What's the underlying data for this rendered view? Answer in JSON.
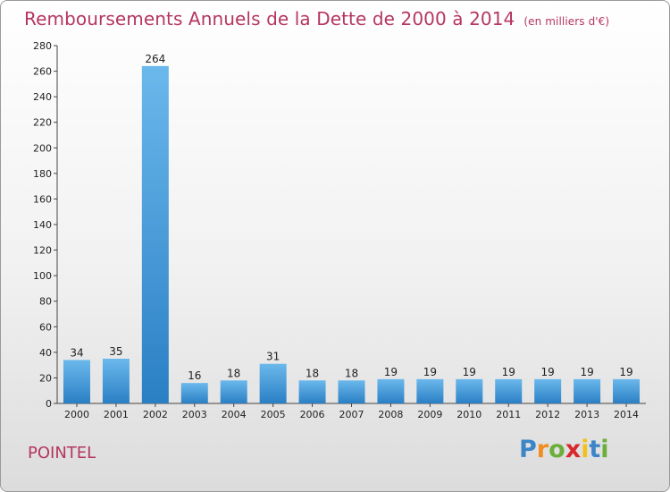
{
  "header": {
    "title": "Remboursements Annuels de la Dette de 2000 à 2014",
    "unit": "(en milliers d'€)"
  },
  "footer": {
    "commune": "POINTEL",
    "logo": {
      "letters": [
        "P",
        "r",
        "o",
        "x",
        "i",
        "t",
        "i"
      ],
      "colors": [
        "#3c86c8",
        "#f28c1e",
        "#6cae3a",
        "#d8282d",
        "#f2c11e",
        "#3c86c8",
        "#6cae3a"
      ]
    }
  },
  "chart_data": {
    "type": "bar",
    "title": "Remboursements Annuels de la Dette de 2000 à 2014",
    "subtitle": "(en milliers d'€)",
    "categories": [
      "2000",
      "2001",
      "2002",
      "2003",
      "2004",
      "2005",
      "2006",
      "2007",
      "2008",
      "2009",
      "2010",
      "2011",
      "2012",
      "2013",
      "2014"
    ],
    "values": [
      34,
      35,
      264,
      16,
      18,
      31,
      18,
      18,
      19,
      19,
      19,
      19,
      19,
      19,
      19
    ],
    "value_labels": [
      "34",
      "35",
      "264",
      "16",
      "18",
      "31",
      "18",
      "18",
      "19",
      "19",
      "19",
      "19",
      "19",
      "19",
      "19"
    ],
    "yticks": [
      0,
      20,
      40,
      60,
      80,
      100,
      120,
      140,
      160,
      180,
      200,
      220,
      240,
      260,
      280
    ],
    "ylim": [
      0,
      280
    ],
    "xlabel": "",
    "ylabel": "",
    "grid": false,
    "colors": {
      "bar_light": "#6bb8ec",
      "bar_dark": "#2a7fc4",
      "axis": "#444444",
      "text": "#b5365f"
    }
  }
}
